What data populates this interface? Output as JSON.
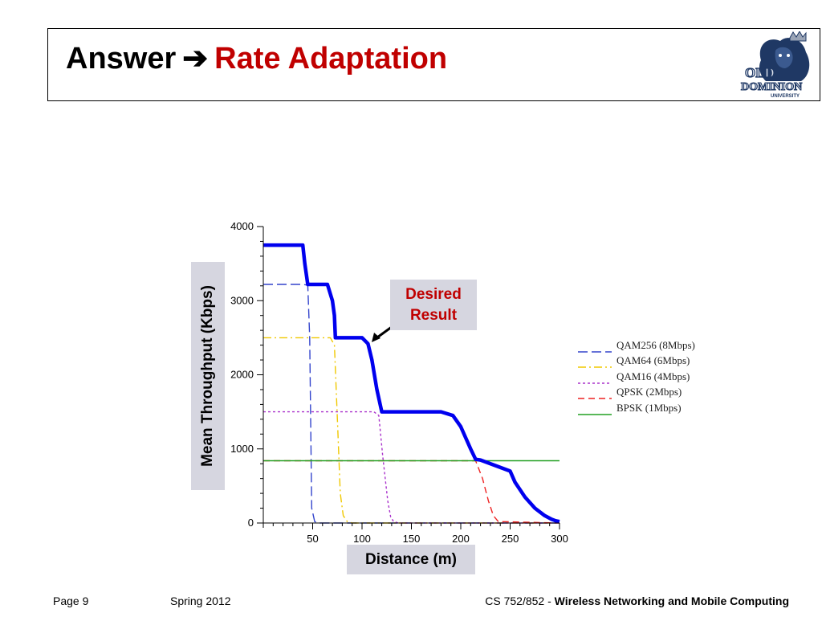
{
  "slide": {
    "title_prefix": "Answer",
    "title_arrow": "➔",
    "title_highlight": "Rate Adaptation",
    "footer": {
      "page": "Page 9",
      "term": "Spring 2012",
      "course": "CS 752/852 - ",
      "course_title": "Wireless Networking and Mobile Computing"
    },
    "logo": {
      "line1": "OLD",
      "line2": "DOMINION",
      "line3": "UNIVERSITY"
    },
    "callout": {
      "line1": "Desired",
      "line2": "Result"
    },
    "colors": {
      "title_accent": "#c00000",
      "label_box": "#d6d6e0",
      "logo_navy": "#1f3864"
    }
  },
  "chart_data": {
    "type": "line",
    "xlabel": "Distance (m)",
    "ylabel": "Mean Throughput (Kbps)",
    "xlim": [
      0,
      300
    ],
    "ylim": [
      0,
      4000
    ],
    "xticks": [
      50,
      100,
      150,
      200,
      250,
      300
    ],
    "yticks": [
      0,
      1000,
      2000,
      3000,
      4000
    ],
    "grid": false,
    "legend_position": "right",
    "series": [
      {
        "name": "QAM256 (8Mbps)",
        "color": "#3344cc",
        "dash": "12,5",
        "x": [
          0,
          40,
          45,
          47,
          49,
          52,
          55,
          300
        ],
        "y": [
          3220,
          3220,
          3210,
          2500,
          200,
          20,
          0,
          0
        ]
      },
      {
        "name": "QAM64 (6Mbps)",
        "color": "#f0c800",
        "dash": "10,4,2,4",
        "x": [
          0,
          68,
          72,
          75,
          78,
          81,
          85,
          90,
          300
        ],
        "y": [
          2500,
          2500,
          2400,
          1400,
          400,
          100,
          20,
          0,
          0
        ]
      },
      {
        "name": "QAM16 (4Mbps)",
        "color": "#aa33cc",
        "dash": "3,3",
        "x": [
          0,
          112,
          117,
          121,
          126,
          129,
          132,
          137,
          300
        ],
        "y": [
          1500,
          1500,
          1450,
          900,
          300,
          80,
          20,
          0,
          0
        ]
      },
      {
        "name": "QPSK (2Mbps)",
        "color": "#ee2222",
        "dash": "8,5",
        "x": [
          0,
          215,
          222,
          228,
          233,
          238,
          300
        ],
        "y": [
          840,
          840,
          600,
          300,
          100,
          20,
          0
        ]
      },
      {
        "name": "BPSK (1Mbps)",
        "color": "#22a022",
        "dash": "",
        "x": [
          0,
          300
        ],
        "y": [
          840,
          840
        ]
      },
      {
        "name": "",
        "color": "#0000ee",
        "dash": "",
        "width": 4.5,
        "x": [
          0,
          40,
          42,
          45,
          65,
          70,
          72,
          73,
          75,
          100,
          106,
          110,
          115,
          120,
          180,
          192,
          200,
          205,
          210,
          215,
          220,
          250,
          255,
          265,
          275,
          285,
          292,
          296,
          300
        ],
        "y": [
          3750,
          3750,
          3500,
          3220,
          3220,
          3000,
          2800,
          2500,
          2500,
          2500,
          2420,
          2200,
          1800,
          1500,
          1500,
          1450,
          1300,
          1150,
          1000,
          860,
          850,
          700,
          550,
          350,
          200,
          100,
          50,
          30,
          20
        ]
      }
    ]
  }
}
